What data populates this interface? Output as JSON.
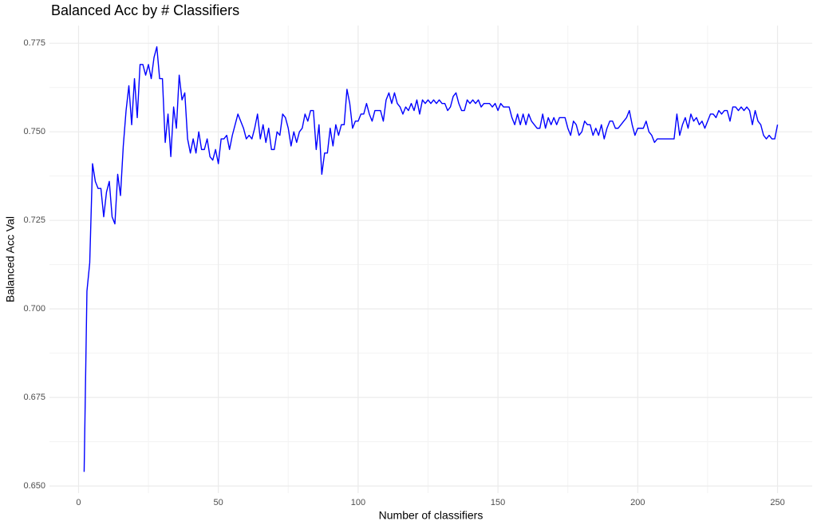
{
  "chart_data": {
    "type": "line",
    "title": "Balanced Acc by # Classifiers",
    "x_label": "Number of classifiers",
    "y_label": "Balanced Acc Val",
    "xlim": [
      -10.4,
      262.4
    ],
    "ylim": [
      0.648,
      0.78
    ],
    "xticks": [
      0,
      50,
      100,
      150,
      200,
      250
    ],
    "yticks": [
      {
        "value": 0.65,
        "label": "0.650"
      },
      0.675,
      {
        "value": 0.7,
        "label": "0.700"
      },
      0.725,
      {
        "value": 0.75,
        "label": "0.750"
      },
      0.775
    ],
    "grid": true,
    "minor_grid": true,
    "x": [
      2,
      3,
      4,
      5,
      6,
      7,
      8,
      9,
      10,
      11,
      12,
      13,
      14,
      15,
      16,
      17,
      18,
      19,
      20,
      21,
      22,
      23,
      24,
      25,
      26,
      27,
      28,
      29,
      30,
      31,
      32,
      33,
      34,
      35,
      36,
      37,
      38,
      39,
      40,
      41,
      42,
      43,
      44,
      45,
      46,
      47,
      48,
      49,
      50,
      51,
      52,
      53,
      54,
      55,
      56,
      57,
      58,
      59,
      60,
      61,
      62,
      63,
      64,
      65,
      66,
      67,
      68,
      69,
      70,
      71,
      72,
      73,
      74,
      75,
      76,
      77,
      78,
      79,
      80,
      81,
      82,
      83,
      84,
      85,
      86,
      87,
      88,
      89,
      90,
      91,
      92,
      93,
      94,
      95,
      96,
      97,
      98,
      99,
      100,
      101,
      102,
      103,
      104,
      105,
      106,
      107,
      108,
      109,
      110,
      111,
      112,
      113,
      114,
      115,
      116,
      117,
      118,
      119,
      120,
      121,
      122,
      123,
      124,
      125,
      126,
      127,
      128,
      129,
      130,
      131,
      132,
      133,
      134,
      135,
      136,
      137,
      138,
      139,
      140,
      141,
      142,
      143,
      144,
      145,
      146,
      147,
      148,
      149,
      150,
      151,
      152,
      153,
      154,
      155,
      156,
      157,
      158,
      159,
      160,
      161,
      162,
      163,
      164,
      165,
      166,
      167,
      168,
      169,
      170,
      171,
      172,
      173,
      174,
      175,
      176,
      177,
      178,
      179,
      180,
      181,
      182,
      183,
      184,
      185,
      186,
      187,
      188,
      189,
      190,
      191,
      192,
      193,
      194,
      195,
      196,
      197,
      198,
      199,
      200,
      201,
      202,
      203,
      204,
      205,
      206,
      207,
      208,
      209,
      210,
      211,
      212,
      213,
      214,
      215,
      216,
      217,
      218,
      219,
      220,
      221,
      222,
      223,
      224,
      225,
      226,
      227,
      228,
      229,
      230,
      231,
      232,
      233,
      234,
      235,
      236,
      237,
      238,
      239,
      240,
      241,
      242,
      243,
      244,
      245,
      246,
      247,
      248,
      249,
      250
    ],
    "series": [
      {
        "color": "#0000ff",
        "values": [
          0.654,
          0.705,
          0.713,
          0.741,
          0.736,
          0.734,
          0.734,
          0.726,
          0.733,
          0.736,
          0.726,
          0.724,
          0.738,
          0.732,
          0.746,
          0.756,
          0.763,
          0.752,
          0.765,
          0.754,
          0.769,
          0.769,
          0.766,
          0.769,
          0.765,
          0.771,
          0.774,
          0.765,
          0.765,
          0.747,
          0.755,
          0.743,
          0.757,
          0.751,
          0.766,
          0.759,
          0.761,
          0.748,
          0.744,
          0.748,
          0.744,
          0.75,
          0.745,
          0.745,
          0.748,
          0.743,
          0.742,
          0.745,
          0.741,
          0.748,
          0.748,
          0.749,
          0.745,
          0.749,
          0.752,
          0.755,
          0.753,
          0.751,
          0.748,
          0.749,
          0.748,
          0.751,
          0.755,
          0.748,
          0.752,
          0.747,
          0.751,
          0.745,
          0.745,
          0.75,
          0.749,
          0.755,
          0.754,
          0.751,
          0.746,
          0.75,
          0.747,
          0.75,
          0.751,
          0.755,
          0.753,
          0.756,
          0.756,
          0.745,
          0.752,
          0.738,
          0.744,
          0.744,
          0.751,
          0.746,
          0.752,
          0.749,
          0.752,
          0.752,
          0.762,
          0.758,
          0.751,
          0.753,
          0.753,
          0.755,
          0.755,
          0.758,
          0.755,
          0.753,
          0.756,
          0.756,
          0.756,
          0.753,
          0.759,
          0.761,
          0.758,
          0.761,
          0.758,
          0.757,
          0.755,
          0.757,
          0.756,
          0.758,
          0.756,
          0.759,
          0.755,
          0.759,
          0.758,
          0.759,
          0.758,
          0.759,
          0.758,
          0.759,
          0.758,
          0.758,
          0.756,
          0.757,
          0.76,
          0.761,
          0.758,
          0.756,
          0.756,
          0.759,
          0.758,
          0.759,
          0.758,
          0.759,
          0.757,
          0.758,
          0.758,
          0.758,
          0.757,
          0.758,
          0.756,
          0.758,
          0.757,
          0.757,
          0.757,
          0.754,
          0.752,
          0.755,
          0.752,
          0.755,
          0.752,
          0.755,
          0.753,
          0.752,
          0.751,
          0.751,
          0.755,
          0.751,
          0.754,
          0.752,
          0.754,
          0.752,
          0.754,
          0.754,
          0.754,
          0.751,
          0.749,
          0.753,
          0.752,
          0.749,
          0.75,
          0.753,
          0.752,
          0.752,
          0.749,
          0.751,
          0.749,
          0.752,
          0.748,
          0.751,
          0.753,
          0.753,
          0.751,
          0.751,
          0.752,
          0.753,
          0.754,
          0.756,
          0.752,
          0.749,
          0.751,
          0.751,
          0.751,
          0.753,
          0.75,
          0.749,
          0.747,
          0.748,
          0.748,
          0.748,
          0.748,
          0.748,
          0.748,
          0.748,
          0.755,
          0.749,
          0.752,
          0.754,
          0.751,
          0.755,
          0.753,
          0.754,
          0.752,
          0.753,
          0.751,
          0.753,
          0.755,
          0.755,
          0.754,
          0.756,
          0.755,
          0.756,
          0.756,
          0.753,
          0.757,
          0.757,
          0.756,
          0.757,
          0.756,
          0.757,
          0.756,
          0.752,
          0.756,
          0.753,
          0.752,
          0.749,
          0.748,
          0.749,
          0.748,
          0.748,
          0.752
        ]
      }
    ]
  }
}
